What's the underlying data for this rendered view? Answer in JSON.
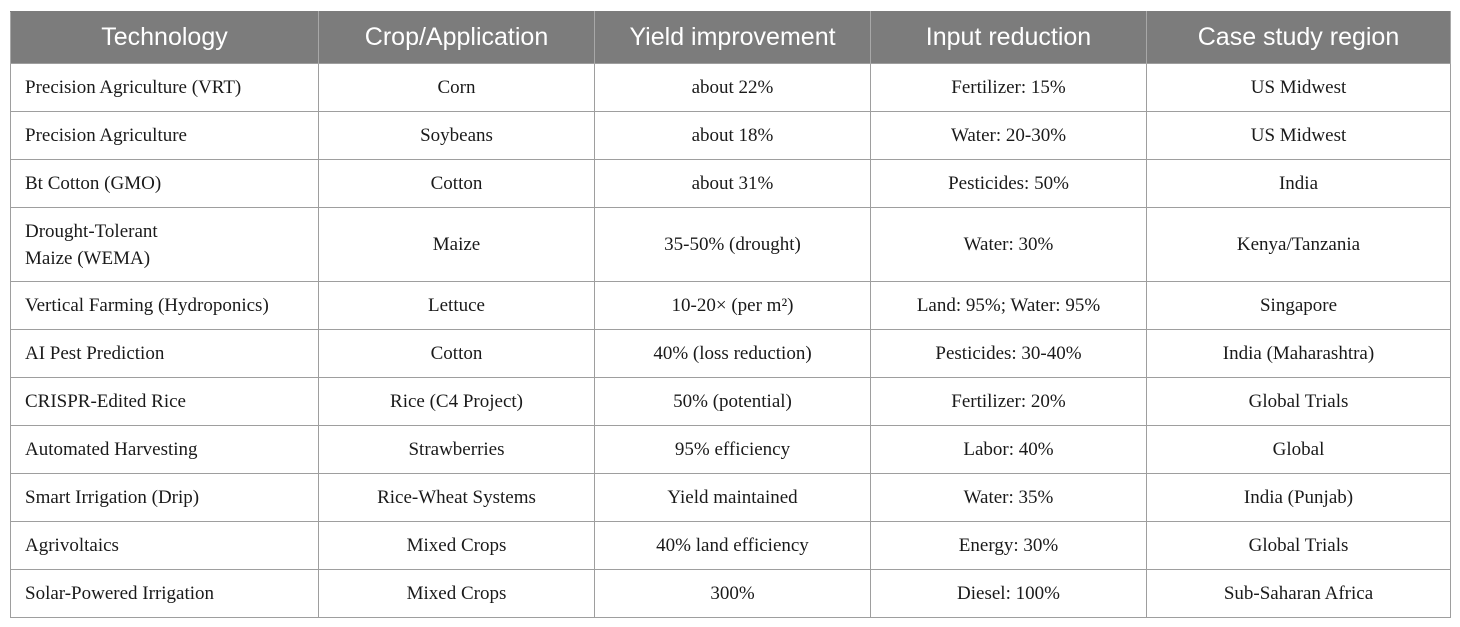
{
  "table": {
    "headers": [
      "Technology",
      "Crop/Application",
      "Yield improvement",
      "Input reduction",
      "Case study region"
    ],
    "rows": [
      [
        "Precision Agriculture (VRT)",
        "Corn",
        "about 22%",
        "Fertilizer: 15%",
        "US Midwest"
      ],
      [
        "Precision Agriculture",
        "Soybeans",
        "about 18%",
        "Water: 20-30%",
        "US Midwest"
      ],
      [
        "Bt Cotton (GMO)",
        "Cotton",
        "about 31%",
        "Pesticides: 50%",
        "India"
      ],
      [
        "Drought-Tolerant Maize (WEMA)",
        "Maize",
        "35-50% (drought)",
        "Water: 30%",
        "Kenya/Tanzania"
      ],
      [
        "Vertical Farming (Hydroponics)",
        "Lettuce",
        "10-20× (per m²)",
        "Land: 95%; Water: 95%",
        "Singapore"
      ],
      [
        "AI Pest Prediction",
        "Cotton",
        "40% (loss reduction)",
        "Pesticides: 30-40%",
        "India (Maharashtra)"
      ],
      [
        "CRISPR-Edited Rice",
        "Rice (C4 Project)",
        "50% (potential)",
        "Fertilizer: 20%",
        "Global Trials"
      ],
      [
        "Automated Harvesting",
        "Strawberries",
        "95% efficiency",
        "Labor: 40%",
        "Global"
      ],
      [
        "Smart Irrigation (Drip)",
        "Rice-Wheat Systems",
        "Yield maintained",
        "Water: 35%",
        "India (Punjab)"
      ],
      [
        "Agrivoltaics",
        "Mixed Crops",
        "40% land efficiency",
        "Energy: 30%",
        "Global Trials"
      ],
      [
        "Solar-Powered Irrigation",
        "Mixed Crops",
        "300%",
        "Diesel: 100%",
        "Sub-Saharan Africa"
      ]
    ]
  }
}
